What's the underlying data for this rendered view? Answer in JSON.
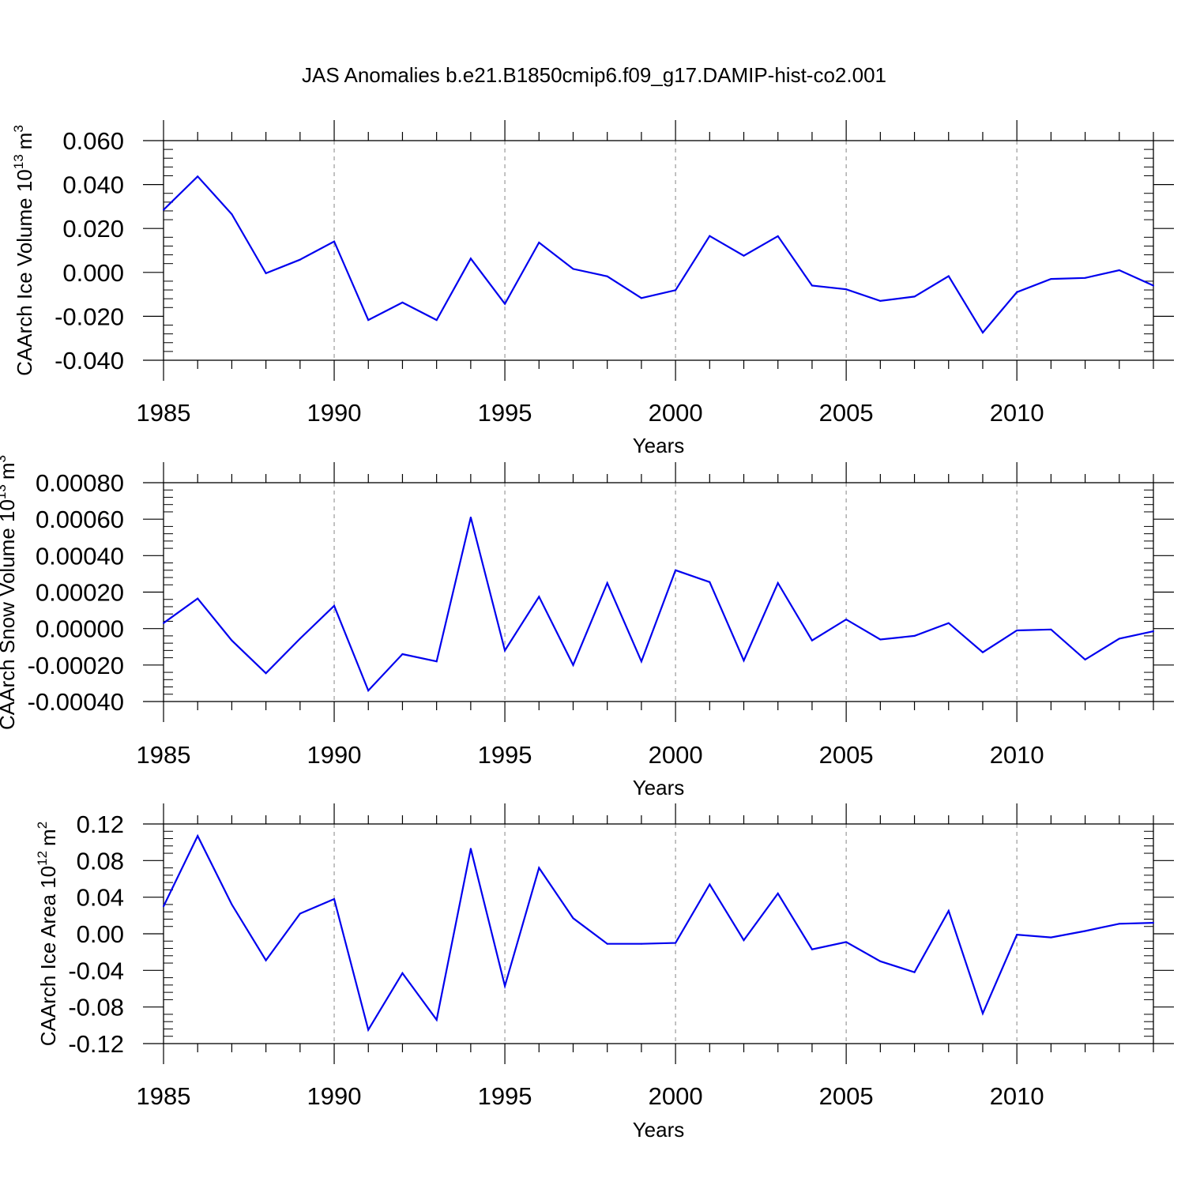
{
  "title": "JAS Anomalies b.e21.B1850cmip6.f09_g17.DAMIP-hist-co2.001",
  "colors": {
    "line": "#0000ee",
    "axis": "#000000",
    "grid": "#9a9a9a"
  },
  "chart_data": [
    {
      "type": "line",
      "title": "JAS Anomalies b.e21.B1850cmip6.f09_g17.DAMIP-hist-co2.001",
      "xlabel": "Years",
      "ylabel": {
        "text": "CAArch Ice Volume 10",
        "exponent": "13",
        "unit": "m",
        "unit_exponent": "3"
      },
      "xlim": [
        1985,
        2014
      ],
      "ylim": [
        -0.04,
        0.06
      ],
      "xticks": [
        1985,
        1990,
        1995,
        2000,
        2005,
        2010
      ],
      "yticks": [
        0.06,
        0.04,
        0.02,
        0.0,
        -0.02,
        -0.04
      ],
      "ytick_labels": [
        "0.060",
        "0.040",
        "0.020",
        "0.000",
        "-0.020",
        "-0.040"
      ],
      "grid": "vertical dashed at major x ticks",
      "x": [
        1985,
        1986,
        1987,
        1988,
        1989,
        1990,
        1991,
        1992,
        1993,
        1994,
        1995,
        1996,
        1997,
        1998,
        1999,
        2000,
        2001,
        2002,
        2003,
        2004,
        2005,
        2006,
        2007,
        2008,
        2009,
        2010,
        2011,
        2012,
        2013,
        2014
      ],
      "values": [
        0.0285,
        0.0437,
        0.0265,
        -0.0004,
        0.0058,
        0.0141,
        -0.0217,
        -0.0137,
        -0.0217,
        0.0063,
        -0.0143,
        0.0136,
        0.0016,
        -0.0018,
        -0.0117,
        -0.0081,
        0.0166,
        0.0076,
        0.0165,
        -0.006,
        -0.0077,
        -0.013,
        -0.011,
        -0.0017,
        -0.0274,
        -0.009,
        -0.003,
        -0.0025,
        0.001,
        -0.006
      ]
    },
    {
      "type": "line",
      "title": "",
      "xlabel": "Years",
      "ylabel": {
        "text": "CAArch Snow Volume 10",
        "exponent": "13",
        "unit": "m",
        "unit_exponent": "3"
      },
      "xlim": [
        1985,
        2014
      ],
      "ylim": [
        -0.0004,
        0.0008
      ],
      "xticks": [
        1985,
        1990,
        1995,
        2000,
        2005,
        2010
      ],
      "yticks": [
        0.0008,
        0.0006,
        0.0004,
        0.0002,
        0.0,
        -0.0002,
        -0.0004
      ],
      "ytick_labels": [
        "0.00080",
        "0.00060",
        "0.00040",
        "0.00020",
        "0.00000",
        "-0.00020",
        "-0.00040"
      ],
      "grid": "vertical dashed at major x ticks",
      "x": [
        1985,
        1986,
        1987,
        1988,
        1989,
        1990,
        1991,
        1992,
        1993,
        1994,
        1995,
        1996,
        1997,
        1998,
        1999,
        2000,
        2001,
        2002,
        2003,
        2004,
        2005,
        2006,
        2007,
        2008,
        2009,
        2010,
        2011,
        2012,
        2013,
        2014
      ],
      "values": [
        3e-05,
        0.000165,
        -6.5e-05,
        -0.000245,
        -5.5e-05,
        0.000125,
        -0.00034,
        -0.00014,
        -0.00018,
        0.00061,
        -0.00012,
        0.000175,
        -0.0002,
        0.00025,
        -0.00018,
        0.00032,
        0.000255,
        -0.000175,
        0.00025,
        -6.5e-05,
        5e-05,
        -6e-05,
        -4e-05,
        3e-05,
        -0.00013,
        -1e-05,
        -5e-06,
        -0.00017,
        -5.5e-05,
        -1.5e-05
      ]
    },
    {
      "type": "line",
      "title": "",
      "xlabel": "Years",
      "ylabel": {
        "text": "CAArch Ice Area 10",
        "exponent": "12",
        "unit": "m",
        "unit_exponent": "2"
      },
      "xlim": [
        1985,
        2014
      ],
      "ylim": [
        -0.12,
        0.12
      ],
      "xticks": [
        1985,
        1990,
        1995,
        2000,
        2005,
        2010
      ],
      "yticks": [
        0.12,
        0.08,
        0.04,
        0.0,
        -0.04,
        -0.08,
        -0.12
      ],
      "ytick_labels": [
        "0.12",
        "0.08",
        "0.04",
        "0.00",
        "-0.04",
        "-0.08",
        "-0.12"
      ],
      "grid": "vertical dashed at major x ticks",
      "x": [
        1985,
        1986,
        1987,
        1988,
        1989,
        1990,
        1991,
        1992,
        1993,
        1994,
        1995,
        1996,
        1997,
        1998,
        1999,
        2000,
        2001,
        2002,
        2003,
        2004,
        2005,
        2006,
        2007,
        2008,
        2009,
        2010,
        2011,
        2012,
        2013,
        2014
      ],
      "values": [
        0.03,
        0.107,
        0.032,
        -0.029,
        0.022,
        0.038,
        -0.105,
        -0.043,
        -0.094,
        0.093,
        -0.057,
        0.072,
        0.017,
        -0.011,
        -0.011,
        -0.01,
        0.054,
        -0.007,
        0.044,
        -0.017,
        -0.009,
        -0.03,
        -0.042,
        0.025,
        -0.087,
        -0.001,
        -0.004,
        0.003,
        0.011,
        0.012
      ]
    }
  ]
}
